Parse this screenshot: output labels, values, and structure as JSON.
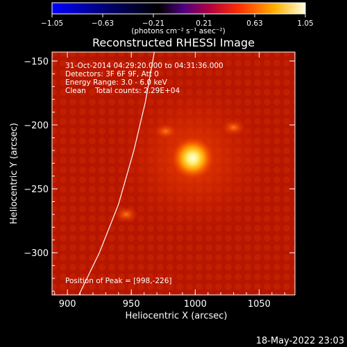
{
  "chart_data": {
    "type": "heatmap",
    "title": "Reconstructed RHESSI Image",
    "xlabel": "Heliocentric X (arcsec)",
    "ylabel": "Heliocentric Y (arcsec)",
    "xlim": [
      888,
      1078
    ],
    "ylim": [
      -333,
      -143
    ],
    "x_ticks": [
      900,
      950,
      1000,
      1050
    ],
    "y_ticks": [
      -150,
      -200,
      -250,
      -300
    ],
    "colorbar": {
      "range": [
        -1.05,
        1.05
      ],
      "ticks": [
        -1.05,
        -0.63,
        -0.21,
        0.21,
        0.63,
        1.05
      ],
      "tick_labels": [
        "−1.05",
        "−0.63",
        "−0.21",
        "0.21",
        "0.63",
        "1.05"
      ],
      "unit_label": "(photons cm⁻² s⁻¹ asec⁻²)"
    },
    "annotations": [
      "31-Oct-2014 04:29:20.000 to 04:31:36.000",
      "Detectors: 3F 6F 9F, Att 0",
      "Energy Range: 3.0 - 6.0 keV",
      "Clean    Total counts: 2.29E+04"
    ],
    "peak_label": "Position of Peak = [998,-226]",
    "peak": [
      998,
      -226
    ],
    "limb_curve": [
      [
        909,
        -333
      ],
      [
        925,
        -300
      ],
      [
        940,
        -262
      ],
      [
        952,
        -220
      ],
      [
        961,
        -182
      ],
      [
        968,
        -143
      ]
    ],
    "secondary_sources": [
      {
        "x": 946,
        "y": -270,
        "label": ""
      },
      {
        "x": 977,
        "y": -205,
        "label": ""
      },
      {
        "x": 1030,
        "y": -202,
        "label": ""
      }
    ],
    "grid": false
  },
  "footer": {
    "date": "18-May-2022 23:03"
  }
}
